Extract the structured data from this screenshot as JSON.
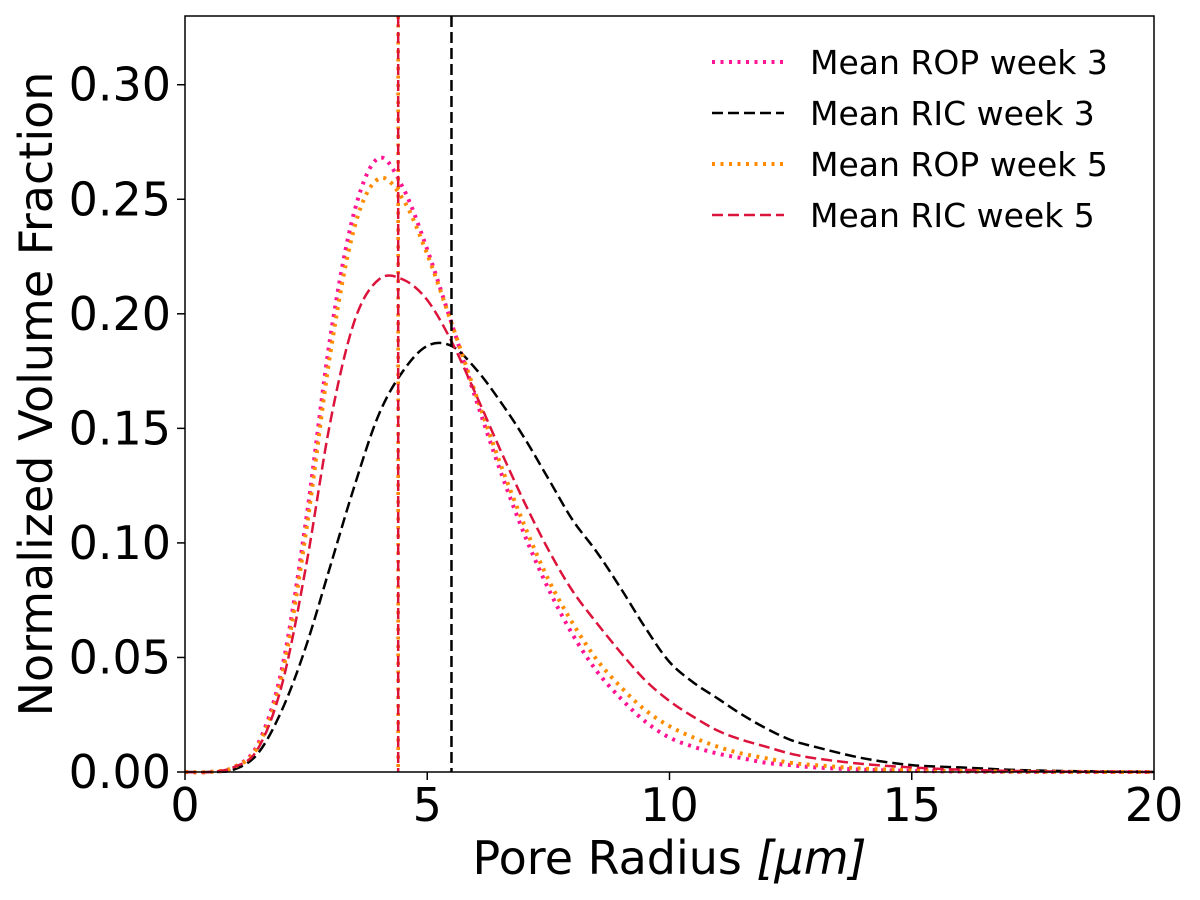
{
  "chart_data": {
    "type": "line",
    "xlabel_main": "Pore Radius ",
    "xlabel_unit": "[μm]",
    "ylabel": "Normalized Volume Fraction",
    "xlim": [
      0,
      20
    ],
    "ylim": [
      0,
      0.33
    ],
    "x_ticks": [
      0,
      5,
      10,
      15,
      20
    ],
    "x_tick_labels": [
      "0",
      "5",
      "10",
      "15",
      "20"
    ],
    "y_ticks": [
      0,
      0.05,
      0.1,
      0.15,
      0.2,
      0.25,
      0.3
    ],
    "y_tick_labels": [
      "0.00",
      "0.05",
      "0.10",
      "0.15",
      "0.20",
      "0.25",
      "0.30"
    ],
    "grid": false,
    "legend_position": "top-right",
    "x": [
      0,
      0.5,
      1,
      1.5,
      2,
      2.5,
      3,
      3.5,
      4,
      4.5,
      5,
      5.5,
      6,
      6.5,
      7,
      7.5,
      8,
      8.5,
      9,
      9.5,
      10,
      10.5,
      11,
      11.5,
      12,
      12.5,
      13,
      14,
      15,
      16,
      17,
      18,
      19,
      20
    ],
    "series": [
      {
        "name": "Mean ROP week 3",
        "color": "#ff1493",
        "dash": "dotted",
        "values": [
          0,
          0,
          0.002,
          0.012,
          0.045,
          0.11,
          0.19,
          0.245,
          0.268,
          0.255,
          0.228,
          0.196,
          0.163,
          0.132,
          0.104,
          0.08,
          0.06,
          0.044,
          0.032,
          0.022,
          0.015,
          0.011,
          0.008,
          0.006,
          0.004,
          0.003,
          0.002,
          0.001,
          0.0005,
          0.0002,
          0.0001,
          0,
          0,
          0
        ]
      },
      {
        "name": "Mean RIC week 3",
        "color": "#000000",
        "dash": "dashed",
        "values": [
          0,
          0,
          0.001,
          0.008,
          0.027,
          0.055,
          0.09,
          0.125,
          0.156,
          0.175,
          0.186,
          0.186,
          0.176,
          0.162,
          0.146,
          0.128,
          0.11,
          0.096,
          0.08,
          0.063,
          0.048,
          0.039,
          0.032,
          0.025,
          0.019,
          0.014,
          0.011,
          0.006,
          0.003,
          0.002,
          0.001,
          0.0005,
          0.0002,
          0
        ]
      },
      {
        "name": "Mean ROP week 5",
        "color": "#ff8c00",
        "dash": "dotted",
        "values": [
          0,
          0,
          0.002,
          0.011,
          0.042,
          0.105,
          0.183,
          0.238,
          0.259,
          0.25,
          0.226,
          0.196,
          0.165,
          0.135,
          0.108,
          0.084,
          0.065,
          0.049,
          0.037,
          0.027,
          0.02,
          0.015,
          0.011,
          0.008,
          0.006,
          0.004,
          0.003,
          0.0015,
          0.0008,
          0.0004,
          0.0002,
          0.0001,
          0,
          0
        ]
      },
      {
        "name": "Mean RIC week 5",
        "color": "#dc143c",
        "dash": "dashed",
        "values": [
          0,
          0,
          0.002,
          0.01,
          0.038,
          0.09,
          0.153,
          0.197,
          0.215,
          0.215,
          0.206,
          0.188,
          0.165,
          0.141,
          0.118,
          0.097,
          0.079,
          0.065,
          0.052,
          0.04,
          0.031,
          0.024,
          0.018,
          0.014,
          0.011,
          0.008,
          0.006,
          0.0035,
          0.002,
          0.001,
          0.0005,
          0.0002,
          0.0001,
          0
        ]
      }
    ],
    "vertical_lines": [
      {
        "x": 4.4,
        "color": "#ff1493",
        "dash": "dotted"
      },
      {
        "x": 5.5,
        "color": "#000000",
        "dash": "dashed"
      },
      {
        "x": 4.4,
        "color": "#ff8c00",
        "dash": "dotted"
      },
      {
        "x": 4.4,
        "color": "#dc143c",
        "dash": "dashed"
      }
    ]
  }
}
